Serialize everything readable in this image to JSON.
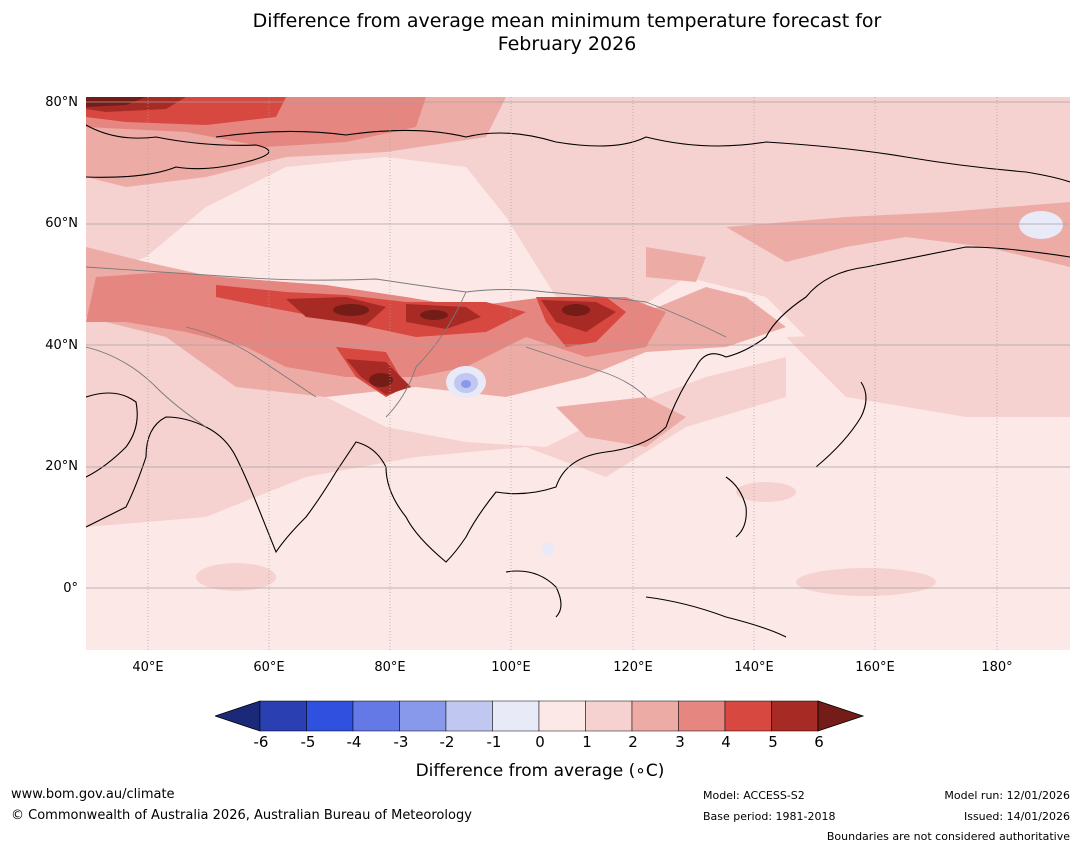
{
  "title": {
    "line1": "Difference from average mean minimum temperature forecast for",
    "line2": "February 2026"
  },
  "map": {
    "lat_labels": [
      "80°N",
      "60°N",
      "40°N",
      "20°N",
      "0°"
    ],
    "lon_labels": [
      "40°E",
      "60°E",
      "80°E",
      "100°E",
      "120°E",
      "140°E",
      "160°E",
      "180°"
    ]
  },
  "colorbar": {
    "ticks": [
      "-6",
      "-5",
      "-4",
      "-3",
      "-2",
      "-1",
      "0",
      "1",
      "2",
      "3",
      "4",
      "5",
      "6"
    ],
    "colors": [
      "#1b2a78",
      "#2a3fb2",
      "#3050e0",
      "#6478e6",
      "#8898ea",
      "#c0c8f2",
      "#e8eaf8",
      "#fce9e7",
      "#f5d2cf",
      "#edaba6",
      "#e68680",
      "#d64840",
      "#a82a24",
      "#741c17"
    ],
    "label": "Difference from average (°C)",
    "label_text": "Difference from average (",
    "label_unit": "∘C)"
  },
  "footer": {
    "url": "www.bom.gov.au/climate",
    "copyright": "© Commonwealth of Australia 2026, Australian Bureau of Meteorology",
    "model": "Model: ACCESS-S2",
    "base_period": "Base period: 1981-2018",
    "model_run": "Model run: 12/01/2026",
    "issued": "Issued: 14/01/2026",
    "disclaimer": "Boundaries are not considered authoritative"
  }
}
